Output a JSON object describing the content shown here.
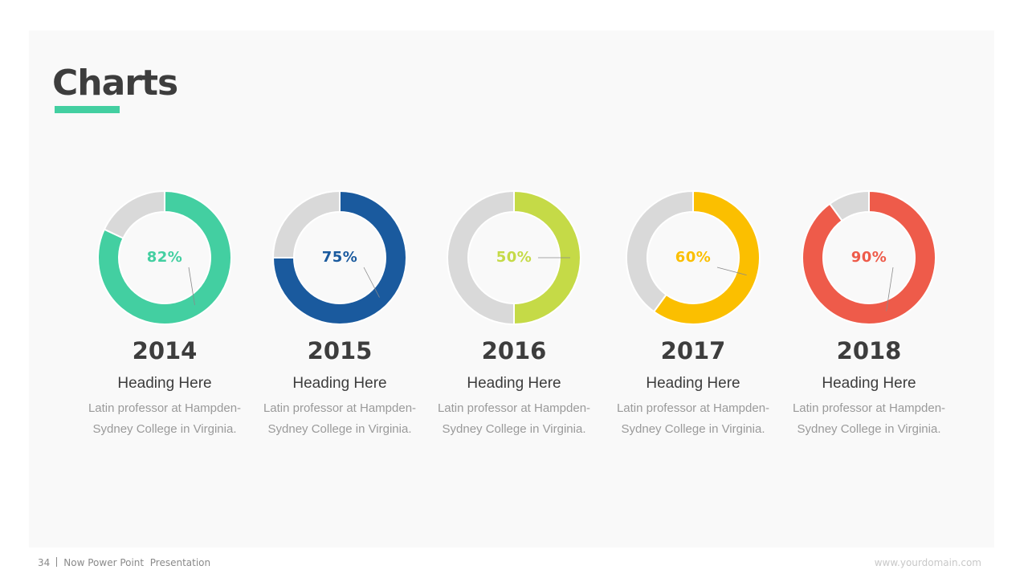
{
  "slide": {
    "title": "Charts",
    "accent_color": "#43cfa1",
    "track_color": "#d9d9d9"
  },
  "items": [
    {
      "percent_label": "82%",
      "value": 82,
      "color": "#43cfa1",
      "year": "2014",
      "heading": "Heading Here",
      "desc_line1": "Latin professor at Hampden-",
      "desc_line2": "Sydney College in Virginia."
    },
    {
      "percent_label": "75%",
      "value": 75,
      "color": "#1a5a9e",
      "year": "2015",
      "heading": "Heading Here",
      "desc_line1": "Latin professor at Hampden-",
      "desc_line2": "Sydney College in Virginia."
    },
    {
      "percent_label": "50%",
      "value": 50,
      "color": "#c5da47",
      "year": "2016",
      "heading": "Heading Here",
      "desc_line1": "Latin professor at Hampden-",
      "desc_line2": "Sydney College in Virginia."
    },
    {
      "percent_label": "60%",
      "value": 60,
      "color": "#fbbf00",
      "year": "2017",
      "heading": "Heading Here",
      "desc_line1": "Latin professor at Hampden-",
      "desc_line2": "Sydney College in Virginia."
    },
    {
      "percent_label": "90%",
      "value": 90,
      "color": "#ee5b4a",
      "year": "2018",
      "heading": "Heading Here",
      "desc_line1": "Latin professor at Hampden-",
      "desc_line2": "Sydney College in Virginia."
    }
  ],
  "footer": {
    "page_number": "34",
    "presentation_name": "Now Power Point  Presentation",
    "website": "www.yourdomain.com"
  },
  "chart_data": [
    {
      "type": "pie",
      "subtype": "donut",
      "title": "2014",
      "categories": [
        "Value",
        "Remainder"
      ],
      "values": [
        82,
        18
      ],
      "label": "82%",
      "colors": [
        "#43cfa1",
        "#d9d9d9"
      ]
    },
    {
      "type": "pie",
      "subtype": "donut",
      "title": "2015",
      "categories": [
        "Value",
        "Remainder"
      ],
      "values": [
        75,
        25
      ],
      "label": "75%",
      "colors": [
        "#1a5a9e",
        "#d9d9d9"
      ]
    },
    {
      "type": "pie",
      "subtype": "donut",
      "title": "2016",
      "categories": [
        "Value",
        "Remainder"
      ],
      "values": [
        50,
        50
      ],
      "label": "50%",
      "colors": [
        "#c5da47",
        "#d9d9d9"
      ]
    },
    {
      "type": "pie",
      "subtype": "donut",
      "title": "2017",
      "categories": [
        "Value",
        "Remainder"
      ],
      "values": [
        60,
        40
      ],
      "label": "60%",
      "colors": [
        "#fbbf00",
        "#d9d9d9"
      ]
    },
    {
      "type": "pie",
      "subtype": "donut",
      "title": "2018",
      "categories": [
        "Value",
        "Remainder"
      ],
      "values": [
        90,
        10
      ],
      "label": "90%",
      "colors": [
        "#ee5b4a",
        "#d9d9d9"
      ]
    }
  ]
}
